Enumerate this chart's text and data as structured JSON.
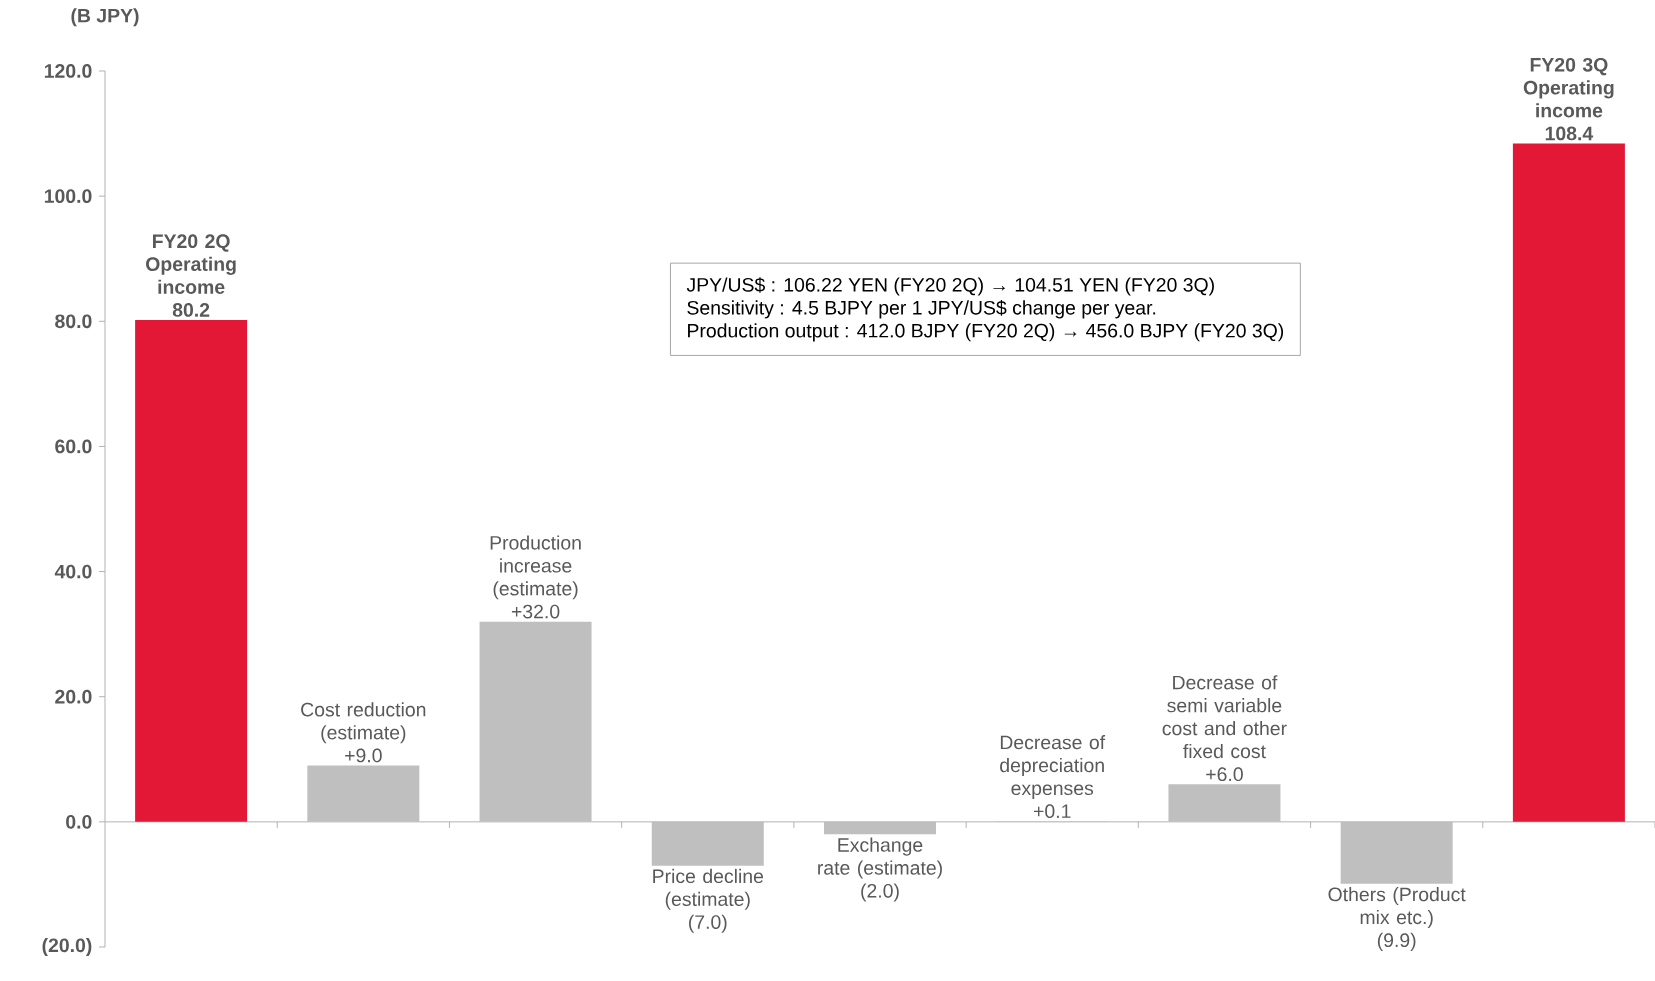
{
  "chart_data": {
    "type": "bar",
    "ylabel": "(B JPY)",
    "categories": [
      "FY20 2Q Operating income",
      "Cost reduction (estimate)",
      "Production increase (estimate)",
      "Price decline (estimate)",
      "Exchange rate (estimate)",
      "Decrease of depreciation expenses",
      "Decrease of semi variable cost and other fixed cost",
      "Others (Product mix etc.)",
      "FY20 3Q Operating income"
    ],
    "values": [
      80.2,
      9.0,
      32.0,
      -7.0,
      -2.0,
      0.1,
      6.0,
      -9.9,
      108.4
    ],
    "value_labels": [
      "80.2",
      "+9.0",
      "+32.0",
      "(7.0)",
      "(2.0)",
      "+0.1",
      "+6.0",
      "(9.9)",
      "108.4"
    ],
    "colors": [
      "#e31837",
      "#bfbfbf",
      "#bfbfbf",
      "#bfbfbf",
      "#bfbfbf",
      "#bfbfbf",
      "#bfbfbf",
      "#bfbfbf",
      "#e31837"
    ],
    "ylim": [
      -20,
      120
    ],
    "yticks": [
      {
        "value": -20,
        "label": "(20.0)"
      },
      {
        "value": 0,
        "label": "0.0"
      },
      {
        "value": 20,
        "label": "20.0"
      },
      {
        "value": 40,
        "label": "40.0"
      },
      {
        "value": 60,
        "label": "60.0"
      },
      {
        "value": 80,
        "label": "80.0"
      },
      {
        "value": 100,
        "label": "100.0"
      },
      {
        "value": 120,
        "label": "120.0"
      }
    ],
    "annotations": [
      "JPY/US$ : 106.22 YEN (FY20 2Q) → 104.51 YEN (FY20 3Q)",
      "Sensitivity : 4.5 BJPY per 1 JPY/US$ change per year.",
      "Production output : 412.0 BJPY (FY20 2Q) → 456.0 BJPY (FY20 3Q)"
    ]
  }
}
